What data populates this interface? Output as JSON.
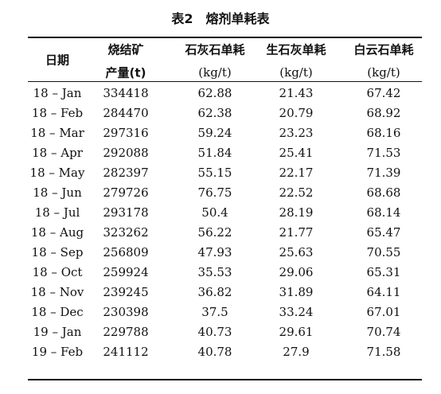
{
  "header": {
    "title": "表2　熔剂单耗表"
  },
  "table": {
    "columns": [
      {
        "lines": [
          "日期"
        ]
      },
      {
        "lines": [
          "烧结矿",
          "产量(t)"
        ]
      },
      {
        "lines": [
          "石灰石单耗",
          "(kg/t)"
        ]
      },
      {
        "lines": [
          "生石灰单耗",
          "(kg/t)"
        ]
      },
      {
        "lines": [
          "白云石单耗",
          "(kg/t)"
        ]
      }
    ],
    "rows": [
      [
        "18 – Jan",
        "334418",
        "62.88",
        "21.43",
        "67.42"
      ],
      [
        "18 – Feb",
        "284470",
        "62.38",
        "20.79",
        "68.92"
      ],
      [
        "18 – Mar",
        "297316",
        "59.24",
        "23.23",
        "68.16"
      ],
      [
        "18 – Apr",
        "292088",
        "51.84",
        "25.41",
        "71.53"
      ],
      [
        "18 – May",
        "282397",
        "55.15",
        "22.17",
        "71.39"
      ],
      [
        "18 – Jun",
        "279726",
        "76.75",
        "22.52",
        "68.68"
      ],
      [
        "18 – Jul",
        "293178",
        "50.4",
        "28.19",
        "68.14"
      ],
      [
        "18 – Aug",
        "323262",
        "56.22",
        "21.77",
        "65.47"
      ],
      [
        "18 – Sep",
        "256809",
        "47.93",
        "25.63",
        "70.55"
      ],
      [
        "18 – Oct",
        "259924",
        "35.53",
        "29.06",
        "65.31"
      ],
      [
        "18 – Nov",
        "239245",
        "36.82",
        "31.89",
        "64.11"
      ],
      [
        "18 – Dec",
        "230398",
        "37.5",
        "33.24",
        "67.01"
      ],
      [
        "19 – Jan",
        "229788",
        "40.73",
        "29.61",
        "70.74"
      ],
      [
        "19 – Feb",
        "241112",
        "40.78",
        "27.9",
        "71.58"
      ]
    ]
  }
}
